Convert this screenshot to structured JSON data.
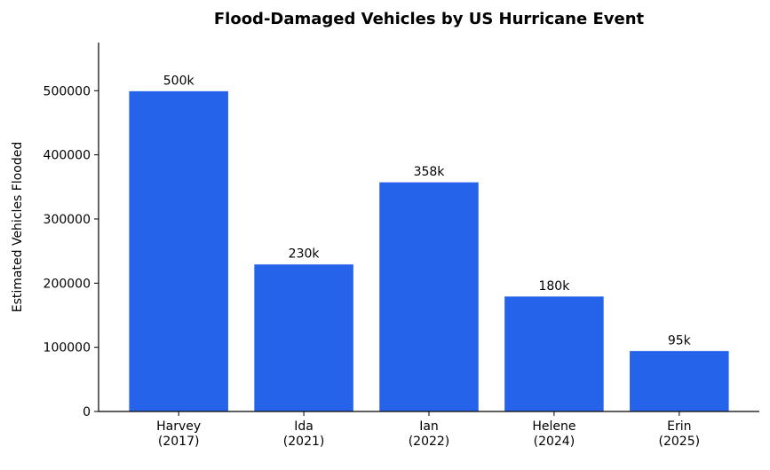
{
  "chart_data": {
    "type": "bar",
    "title": "Flood-Damaged Vehicles by US Hurricane Event",
    "xlabel": "",
    "ylabel": "Estimated Vehicles Flooded",
    "categories": [
      [
        "Harvey",
        "(2017)"
      ],
      [
        "Ida",
        "(2021)"
      ],
      [
        "Ian",
        "(2022)"
      ],
      [
        "Helene",
        "(2024)"
      ],
      [
        "Erin",
        "(2025)"
      ]
    ],
    "values": [
      500000,
      230000,
      358000,
      180000,
      95000
    ],
    "data_labels": [
      "500k",
      "230k",
      "358k",
      "180k",
      "95k"
    ],
    "ylim": [
      0,
      575000
    ],
    "yticks": [
      0,
      100000,
      200000,
      300000,
      400000,
      500000
    ],
    "ytick_labels": [
      "0",
      "100000",
      "200000",
      "300000",
      "400000",
      "500000"
    ],
    "grid": false,
    "bar_color": "#2563EB",
    "bar_edge_color": "#FFFFFF"
  }
}
